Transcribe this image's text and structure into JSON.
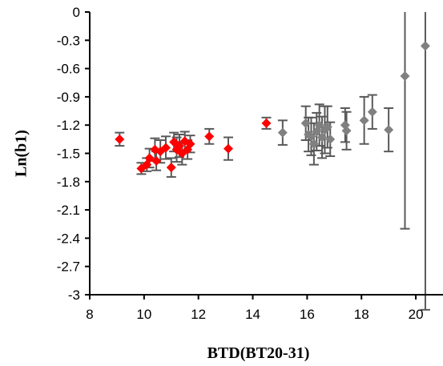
{
  "chart_data": {
    "type": "scatter",
    "title": "",
    "xlabel": "BTD(BT20-31)",
    "ylabel": "Ln(b1)",
    "xlim": [
      8,
      21
    ],
    "ylim": [
      -3,
      0
    ],
    "xticks": [
      8,
      10,
      12,
      14,
      16,
      18,
      20
    ],
    "yticks": [
      0,
      -0.3,
      -0.6,
      -0.9,
      -1.2,
      -1.5,
      -1.8,
      -2.1,
      -2.4,
      -2.7,
      -3
    ],
    "ytick_labels": [
      "0",
      "-0.3",
      "-0.6",
      "-0.9",
      "-1.2",
      "-1.5",
      "-1.8",
      "-2.1",
      "-2.4",
      "-2.7",
      "-3"
    ],
    "grid": false,
    "legend": "none",
    "series": [
      {
        "color": "#ff0000",
        "marker": "diamond",
        "points": [
          {
            "x": 9.1,
            "y": -1.35,
            "err": 0.07
          },
          {
            "x": 9.9,
            "y": -1.66,
            "err": 0.06
          },
          {
            "x": 10.1,
            "y": -1.62,
            "err": 0.07
          },
          {
            "x": 10.2,
            "y": -1.55,
            "err": 0.1
          },
          {
            "x": 10.4,
            "y": -1.46,
            "err": 0.12
          },
          {
            "x": 10.45,
            "y": -1.58,
            "err": 0.1
          },
          {
            "x": 10.6,
            "y": -1.48,
            "err": 0.12
          },
          {
            "x": 10.8,
            "y": -1.44,
            "err": 0.12
          },
          {
            "x": 11.0,
            "y": -1.65,
            "err": 0.1
          },
          {
            "x": 11.1,
            "y": -1.38,
            "err": 0.1
          },
          {
            "x": 11.2,
            "y": -1.46,
            "err": 0.13
          },
          {
            "x": 11.3,
            "y": -1.42,
            "err": 0.12
          },
          {
            "x": 11.4,
            "y": -1.5,
            "err": 0.12
          },
          {
            "x": 11.5,
            "y": -1.37,
            "err": 0.1
          },
          {
            "x": 11.6,
            "y": -1.46,
            "err": 0.1
          },
          {
            "x": 11.7,
            "y": -1.4,
            "err": 0.09
          },
          {
            "x": 12.4,
            "y": -1.32,
            "err": 0.08
          },
          {
            "x": 13.1,
            "y": -1.45,
            "err": 0.12
          },
          {
            "x": 14.5,
            "y": -1.18,
            "err": 0.06
          }
        ]
      },
      {
        "color": "#808080",
        "marker": "diamond",
        "points": [
          {
            "x": 15.1,
            "y": -1.28,
            "err": 0.13
          },
          {
            "x": 15.95,
            "y": -1.18,
            "err": 0.18
          },
          {
            "x": 16.05,
            "y": -1.3,
            "err": 0.18
          },
          {
            "x": 16.15,
            "y": -1.32,
            "err": 0.2
          },
          {
            "x": 16.25,
            "y": -1.4,
            "err": 0.22
          },
          {
            "x": 16.35,
            "y": -1.27,
            "err": 0.2
          },
          {
            "x": 16.45,
            "y": -1.2,
            "err": 0.22
          },
          {
            "x": 16.55,
            "y": -1.33,
            "err": 0.22
          },
          {
            "x": 16.65,
            "y": -1.25,
            "err": 0.25
          },
          {
            "x": 16.75,
            "y": -1.22,
            "err": 0.22
          },
          {
            "x": 16.85,
            "y": -1.35,
            "err": 0.18
          },
          {
            "x": 17.4,
            "y": -1.2,
            "err": 0.18
          },
          {
            "x": 17.45,
            "y": -1.26,
            "err": 0.2
          },
          {
            "x": 18.1,
            "y": -1.15,
            "err": 0.25
          },
          {
            "x": 18.4,
            "y": -1.06,
            "err": 0.18
          },
          {
            "x": 19.0,
            "y": -1.25,
            "err": 0.23
          },
          {
            "x": 19.6,
            "y": -0.68,
            "err": 1.62
          },
          {
            "x": 20.35,
            "y": -0.36,
            "err": 2.8
          }
        ]
      }
    ]
  }
}
